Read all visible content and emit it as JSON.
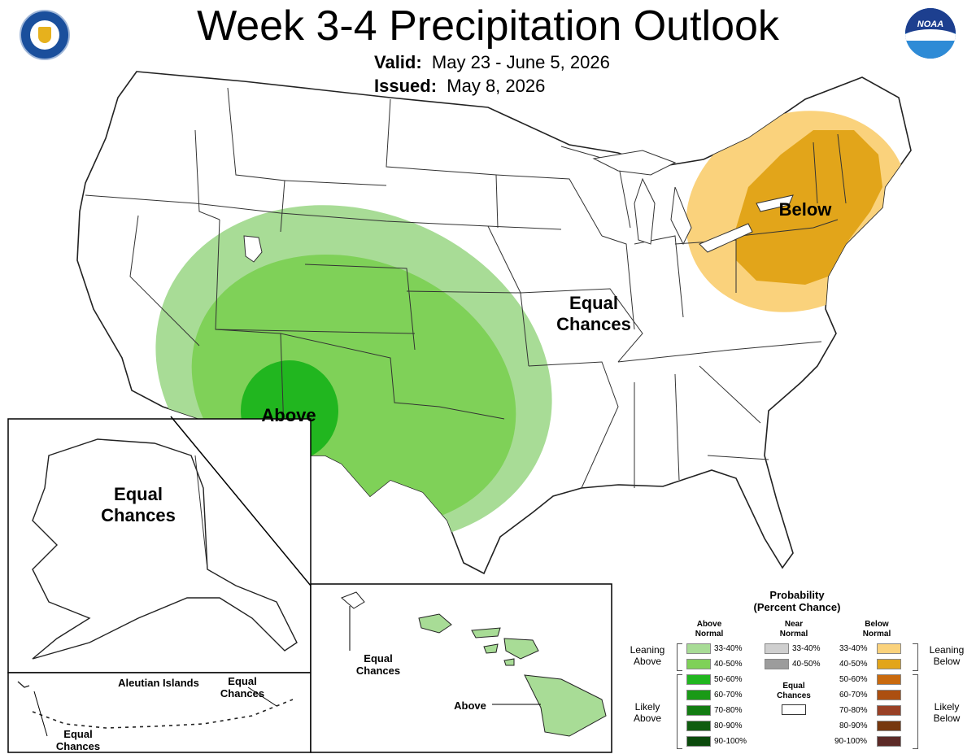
{
  "header": {
    "title": "Week 3-4 Precipitation Outlook",
    "valid_label": "Valid:",
    "valid_value": "May 23 - June 5, 2026",
    "issued_label": "Issued:",
    "issued_value": "May 8, 2026"
  },
  "logos": {
    "left": "Department of Commerce seal",
    "right_text": "NOAA"
  },
  "map_labels": {
    "conus_above": "Above",
    "conus_below": "Below",
    "conus_ec_line1": "Equal",
    "conus_ec_line2": "Chances",
    "alaska_ec_line1": "Equal",
    "alaska_ec_line2": "Chances",
    "aleutian_title": "Aleutian Islands",
    "aleutian_ec1_line1": "Equal",
    "aleutian_ec1_line2": "Chances",
    "aleutian_ec2_line1": "Equal",
    "aleutian_ec2_line2": "Chances",
    "hawaii_ec_line1": "Equal",
    "hawaii_ec_line2": "Chances",
    "hawaii_above": "Above"
  },
  "colors": {
    "above_33_40": "#a8dc96",
    "above_40_50": "#7fd158",
    "above_50_60": "#21b61f",
    "above_60_70": "#1a9a17",
    "above_70_80": "#137c12",
    "above_80_90": "#0f5d0f",
    "above_90_100": "#0b4a0c",
    "near_33_40": "#cfcfcf",
    "near_40_50": "#9c9c9c",
    "below_33_40": "#fad27c",
    "below_40_50": "#e2a51a",
    "below_50_60": "#c96a0e",
    "below_60_70": "#ac4f10",
    "below_70_80": "#994126",
    "below_80_90": "#77380e",
    "below_90_100": "#5c2a27"
  },
  "legend": {
    "title_line1": "Probability",
    "title_line2": "(Percent Chance)",
    "above_head1": "Above",
    "above_head2": "Normal",
    "near_head1": "Near",
    "near_head2": "Normal",
    "below_head1": "Below",
    "below_head2": "Normal",
    "leaning_above1": "Leaning",
    "leaning_above2": "Above",
    "likely_above1": "Likely",
    "likely_above2": "Above",
    "leaning_below1": "Leaning",
    "leaning_below2": "Below",
    "likely_below1": "Likely",
    "likely_below2": "Below",
    "ec_label1": "Equal",
    "ec_label2": "Chances",
    "above_rows": [
      "33-40%",
      "40-50%",
      "50-60%",
      "60-70%",
      "70-80%",
      "80-90%",
      "90-100%"
    ],
    "near_rows": [
      "33-40%",
      "40-50%"
    ],
    "below_rows": [
      "33-40%",
      "40-50%",
      "50-60%",
      "60-70%",
      "70-80%",
      "80-90%",
      "90-100%"
    ]
  }
}
